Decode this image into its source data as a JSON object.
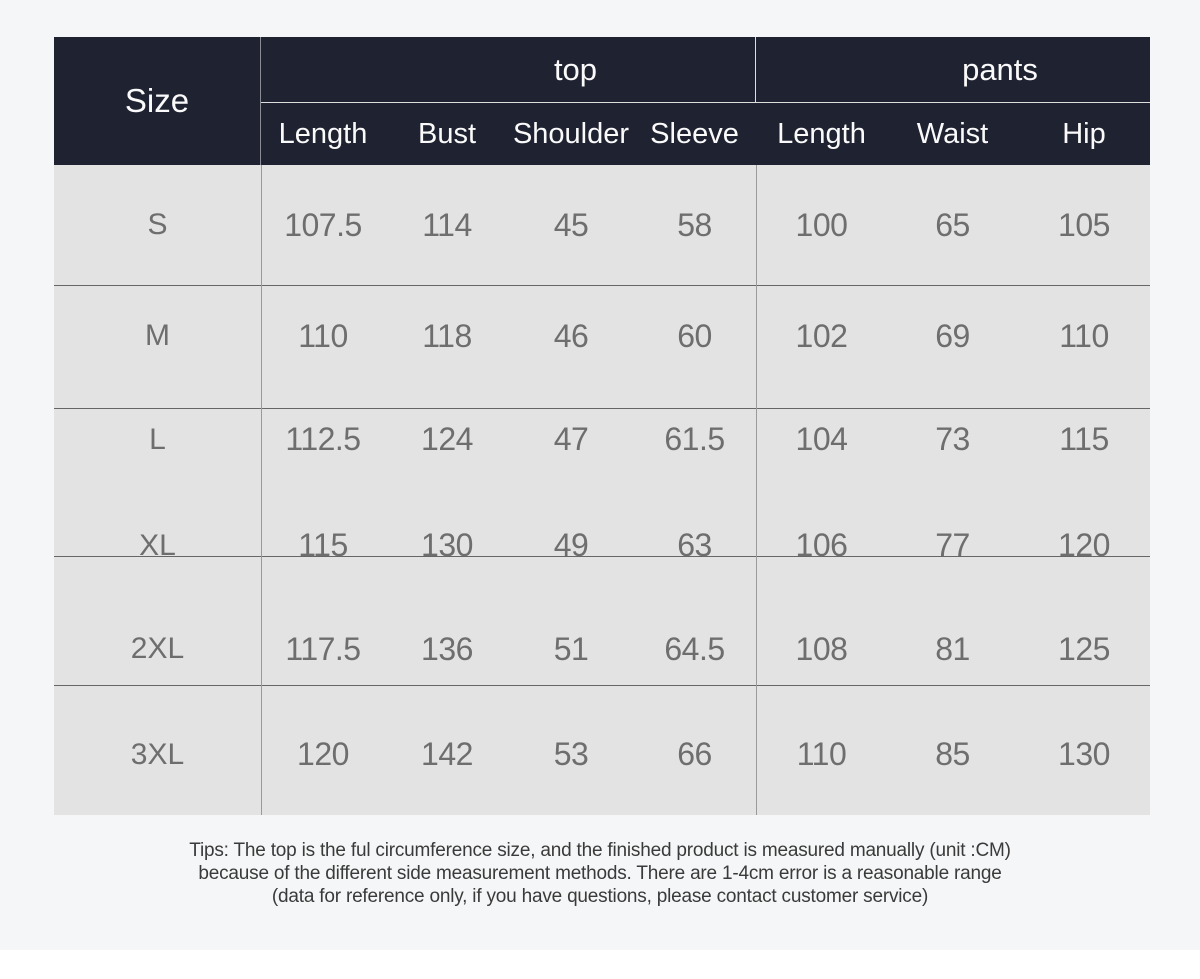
{
  "chart_data": {
    "type": "table",
    "corner_header": "Size",
    "column_groups": [
      {
        "label": "top",
        "columns": [
          "Length",
          "Bust",
          "Shoulder",
          "Sleeve"
        ]
      },
      {
        "label": "pants",
        "columns": [
          "Length",
          "Waist",
          "Hip"
        ]
      }
    ],
    "rows": [
      {
        "size": "S",
        "top": [
          "107.5",
          "114",
          "45",
          "58"
        ],
        "pants": [
          "100",
          "65",
          "105"
        ]
      },
      {
        "size": "M",
        "top": [
          "110",
          "118",
          "46",
          "60"
        ],
        "pants": [
          "102",
          "69",
          "110"
        ]
      },
      {
        "size": "L",
        "top": [
          "112.5",
          "124",
          "47",
          "61.5"
        ],
        "pants": [
          "104",
          "73",
          "115"
        ]
      },
      {
        "size": "XL",
        "top": [
          "115",
          "130",
          "49",
          "63"
        ],
        "pants": [
          "106",
          "77",
          "120"
        ]
      },
      {
        "size": "2XL",
        "top": [
          "117.5",
          "136",
          "51",
          "64.5"
        ],
        "pants": [
          "108",
          "81",
          "125"
        ]
      },
      {
        "size": "3XL",
        "top": [
          "120",
          "142",
          "53",
          "66"
        ],
        "pants": [
          "110",
          "85",
          "130"
        ]
      }
    ]
  },
  "tips": {
    "line1": "Tips: The top is the ful circumference size, and the finished product is measured manually (unit :CM)",
    "line2": "because of the different side measurement methods. There are 1-4cm error is a reasonable range",
    "line3": "(data for reference only, if you have questions, please contact customer service)"
  },
  "colors": {
    "page_bg": "#f5f6f7",
    "header_bg": "#1f2231",
    "cell_bg": "#e3e3e4",
    "row_divider": "#666666",
    "column_divider": "#9a9a9a",
    "header_inner_divider": "#dedede",
    "header_size_divider": "#8b8b95",
    "header_text": "#fafafa",
    "body_text": "#6e6e6e",
    "tips_text": "#3a3a3a"
  }
}
